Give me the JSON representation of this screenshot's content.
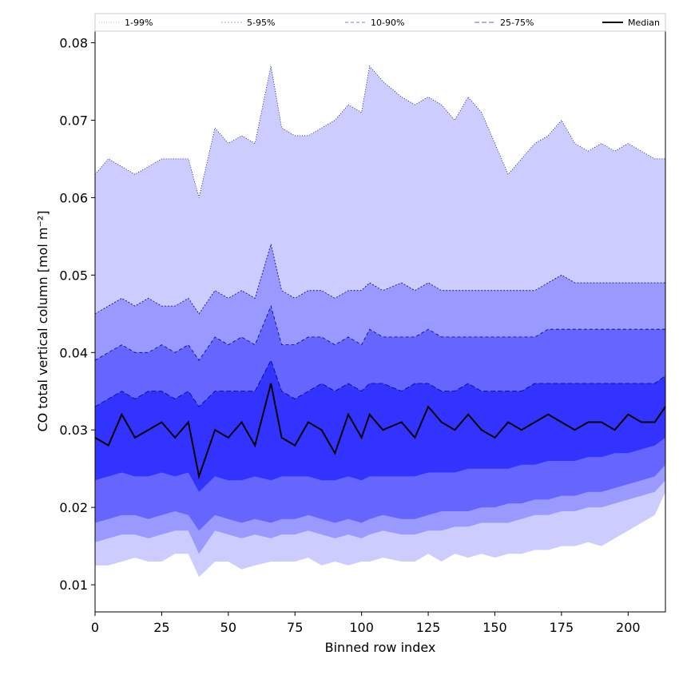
{
  "chart_data": {
    "type": "area",
    "xlabel": "Binned row index",
    "ylabel": "CO total vertical column [mol m⁻²]",
    "xlim": [
      0,
      214
    ],
    "ylim": [
      0.0065,
      0.0815
    ],
    "x_ticks": [
      0,
      25,
      50,
      75,
      100,
      125,
      150,
      175,
      200
    ],
    "y_ticks": [
      0.01,
      0.02,
      0.03,
      0.04,
      0.05,
      0.06,
      0.07,
      0.08
    ],
    "legend": {
      "placement": "top",
      "entries": [
        "1-99%",
        "5-95%",
        "10-90%",
        "25-75%",
        "Median"
      ]
    },
    "colors": {
      "band_1_99": "#ccccff",
      "band_5_95": "#9999ff",
      "band_10_90": "#6666ff",
      "band_25_75": "#3333ff",
      "edge": "#00008b",
      "median": "#000000"
    },
    "x": [
      0,
      5,
      10,
      15,
      20,
      25,
      30,
      35,
      39,
      45,
      50,
      55,
      60,
      66,
      70,
      75,
      80,
      85,
      90,
      95,
      100,
      103,
      108,
      115,
      120,
      125,
      130,
      135,
      140,
      145,
      150,
      155,
      160,
      165,
      170,
      175,
      180,
      185,
      190,
      195,
      200,
      205,
      210,
      214
    ],
    "bands": [
      {
        "name": "1-99%",
        "upper": [
          0.063,
          0.065,
          0.064,
          0.063,
          0.064,
          0.065,
          0.065,
          0.065,
          0.06,
          0.069,
          0.067,
          0.068,
          0.067,
          0.077,
          0.069,
          0.068,
          0.068,
          0.069,
          0.07,
          0.072,
          0.071,
          0.077,
          0.075,
          0.073,
          0.072,
          0.073,
          0.072,
          0.07,
          0.073,
          0.071,
          0.067,
          0.063,
          0.065,
          0.067,
          0.068,
          0.07,
          0.067,
          0.066,
          0.067,
          0.066,
          0.067,
          0.066,
          0.065,
          0.065
        ],
        "lower": [
          0.0125,
          0.0125,
          0.013,
          0.0135,
          0.013,
          0.013,
          0.014,
          0.014,
          0.011,
          0.013,
          0.013,
          0.012,
          0.0125,
          0.013,
          0.013,
          0.013,
          0.0135,
          0.0125,
          0.013,
          0.0125,
          0.013,
          0.013,
          0.0135,
          0.013,
          0.013,
          0.014,
          0.013,
          0.014,
          0.0135,
          0.014,
          0.0135,
          0.014,
          0.014,
          0.0145,
          0.0145,
          0.015,
          0.015,
          0.0155,
          0.015,
          0.016,
          0.017,
          0.018,
          0.019,
          0.022
        ]
      },
      {
        "name": "5-95%",
        "upper": [
          0.045,
          0.046,
          0.047,
          0.046,
          0.047,
          0.046,
          0.046,
          0.047,
          0.045,
          0.048,
          0.047,
          0.048,
          0.047,
          0.054,
          0.048,
          0.047,
          0.048,
          0.048,
          0.047,
          0.048,
          0.048,
          0.049,
          0.048,
          0.049,
          0.048,
          0.049,
          0.048,
          0.048,
          0.048,
          0.048,
          0.048,
          0.048,
          0.048,
          0.048,
          0.049,
          0.05,
          0.049,
          0.049,
          0.049,
          0.049,
          0.049,
          0.049,
          0.049,
          0.049
        ],
        "lower": [
          0.0155,
          0.016,
          0.0165,
          0.0165,
          0.016,
          0.0165,
          0.017,
          0.017,
          0.014,
          0.017,
          0.0165,
          0.016,
          0.0165,
          0.016,
          0.0165,
          0.0165,
          0.017,
          0.0165,
          0.016,
          0.0165,
          0.016,
          0.0165,
          0.017,
          0.0165,
          0.0165,
          0.017,
          0.017,
          0.0175,
          0.0175,
          0.018,
          0.018,
          0.018,
          0.0185,
          0.019,
          0.019,
          0.0195,
          0.0195,
          0.02,
          0.02,
          0.0205,
          0.021,
          0.0215,
          0.022,
          0.0235
        ]
      },
      {
        "name": "10-90%",
        "upper": [
          0.039,
          0.04,
          0.041,
          0.04,
          0.04,
          0.041,
          0.04,
          0.041,
          0.039,
          0.042,
          0.041,
          0.042,
          0.041,
          0.046,
          0.041,
          0.041,
          0.042,
          0.042,
          0.041,
          0.042,
          0.041,
          0.043,
          0.042,
          0.042,
          0.042,
          0.043,
          0.042,
          0.042,
          0.042,
          0.042,
          0.042,
          0.042,
          0.042,
          0.042,
          0.043,
          0.043,
          0.043,
          0.043,
          0.043,
          0.043,
          0.043,
          0.043,
          0.043,
          0.043
        ],
        "lower": [
          0.018,
          0.0185,
          0.019,
          0.019,
          0.0185,
          0.019,
          0.0195,
          0.019,
          0.017,
          0.019,
          0.0185,
          0.018,
          0.0185,
          0.018,
          0.0185,
          0.0185,
          0.019,
          0.0185,
          0.018,
          0.0185,
          0.018,
          0.0185,
          0.019,
          0.0185,
          0.0185,
          0.019,
          0.0195,
          0.0195,
          0.0195,
          0.02,
          0.02,
          0.0205,
          0.0205,
          0.021,
          0.021,
          0.0215,
          0.0215,
          0.022,
          0.022,
          0.0225,
          0.023,
          0.0235,
          0.024,
          0.0255
        ]
      },
      {
        "name": "25-75%",
        "upper": [
          0.033,
          0.034,
          0.035,
          0.034,
          0.035,
          0.035,
          0.034,
          0.035,
          0.033,
          0.035,
          0.035,
          0.035,
          0.035,
          0.039,
          0.035,
          0.034,
          0.035,
          0.036,
          0.035,
          0.036,
          0.035,
          0.036,
          0.036,
          0.035,
          0.036,
          0.036,
          0.035,
          0.035,
          0.036,
          0.035,
          0.035,
          0.035,
          0.035,
          0.036,
          0.036,
          0.036,
          0.036,
          0.036,
          0.036,
          0.036,
          0.036,
          0.036,
          0.036,
          0.037
        ],
        "lower": [
          0.0235,
          0.024,
          0.0245,
          0.024,
          0.024,
          0.0245,
          0.024,
          0.0245,
          0.022,
          0.024,
          0.0235,
          0.0235,
          0.024,
          0.0235,
          0.024,
          0.024,
          0.024,
          0.0235,
          0.0235,
          0.024,
          0.0235,
          0.024,
          0.024,
          0.024,
          0.024,
          0.0245,
          0.0245,
          0.0245,
          0.025,
          0.025,
          0.025,
          0.025,
          0.0255,
          0.0255,
          0.026,
          0.026,
          0.026,
          0.0265,
          0.0265,
          0.027,
          0.027,
          0.0275,
          0.028,
          0.029
        ]
      }
    ],
    "median": [
      0.029,
      0.028,
      0.032,
      0.029,
      0.03,
      0.031,
      0.029,
      0.031,
      0.024,
      0.03,
      0.029,
      0.031,
      0.028,
      0.036,
      0.029,
      0.028,
      0.031,
      0.03,
      0.027,
      0.032,
      0.029,
      0.032,
      0.03,
      0.031,
      0.029,
      0.033,
      0.031,
      0.03,
      0.032,
      0.03,
      0.029,
      0.031,
      0.03,
      0.031,
      0.032,
      0.031,
      0.03,
      0.031,
      0.031,
      0.03,
      0.032,
      0.031,
      0.031,
      0.033
    ]
  }
}
